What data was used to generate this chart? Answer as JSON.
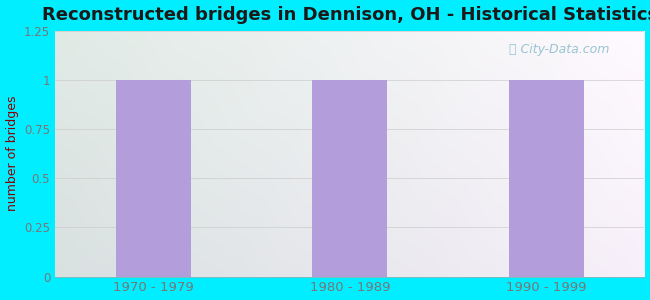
{
  "title": "Reconstructed bridges in Dennison, OH - Historical Statistics",
  "categories": [
    "1970 - 1979",
    "1980 - 1989",
    "1990 - 1999"
  ],
  "values": [
    1,
    1,
    1
  ],
  "bar_color": "#b39ddb",
  "ylabel": "number of bridges",
  "ylim": [
    0,
    1.25
  ],
  "yticks": [
    0,
    0.25,
    0.5,
    0.75,
    1,
    1.25
  ],
  "background_outer": "#00eeff",
  "title_fontsize": 13,
  "tick_label_color": "#777777",
  "ylabel_color": "#8B0000",
  "watermark": "City-Data.com",
  "bg_left_color": "#d4ecd4",
  "bg_right_color": "#eeeeff",
  "bg_top_color": "#e8f0e8",
  "bg_bottom_color": "#d8eed8"
}
